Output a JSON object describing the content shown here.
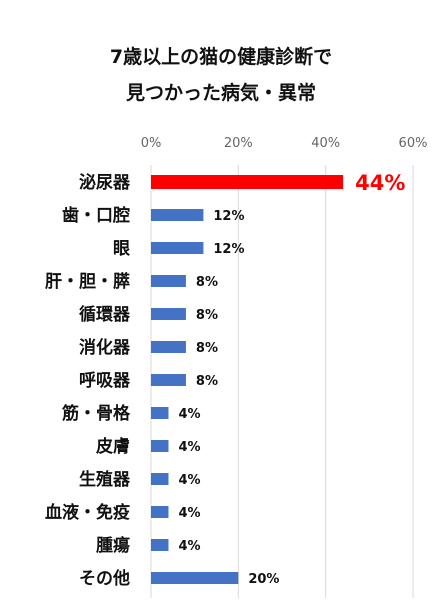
{
  "title_line1": "7歳以上の猫の健康診断で",
  "title_line2": "見つかった病気・異常",
  "chart_data": {
    "type": "bar",
    "orientation": "horizontal",
    "xlim": [
      0,
      60
    ],
    "ticks": [
      "0%",
      "20%",
      "40%",
      "60%"
    ],
    "grid": true,
    "categories": [
      "泌尿器",
      "歯・口腔",
      "眼",
      "肝・胆・膵",
      "循環器",
      "消化器",
      "呼吸器",
      "筋・骨格",
      "皮膚",
      "生殖器",
      "血液・免疫",
      "腫瘍",
      "その他"
    ],
    "values": [
      44,
      12,
      12,
      8,
      8,
      8,
      8,
      4,
      4,
      4,
      4,
      4,
      20
    ],
    "data_labels": [
      "44%",
      "12%",
      "12%",
      "8%",
      "8%",
      "8%",
      "8%",
      "4%",
      "4%",
      "4%",
      "4%",
      "4%",
      "20%"
    ],
    "bar_color": "#4472c4",
    "highlight_color": "#ff0000",
    "highlight_index": 0
  }
}
